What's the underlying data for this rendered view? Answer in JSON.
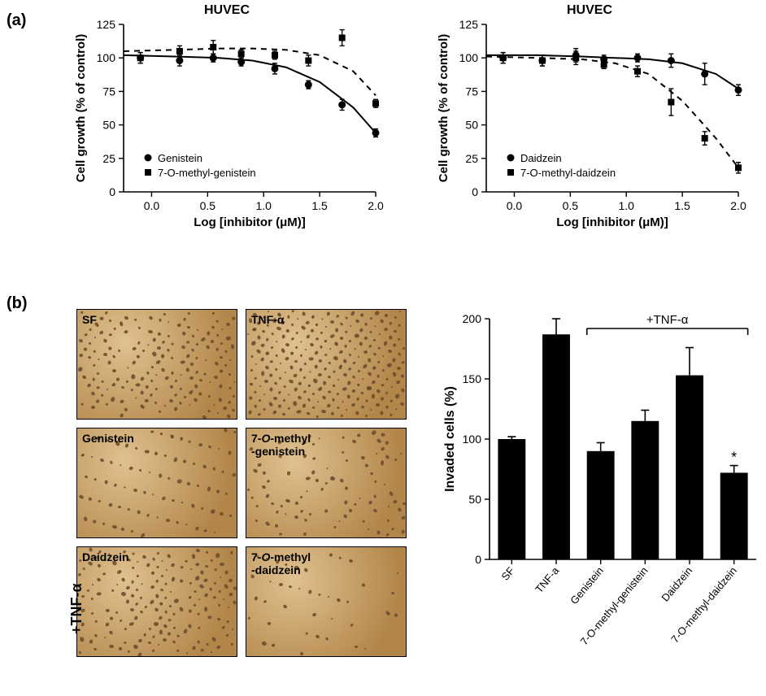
{
  "panel_labels": {
    "a": "(a)",
    "b": "(b)"
  },
  "chart_a1": {
    "type": "line-scatter",
    "title": "HUVEC",
    "xlabel": "Log [inhibitor (μM)]",
    "ylabel": "Cell growth (% of control)",
    "xlim": [
      -0.25,
      2.0
    ],
    "xticks": [
      0.0,
      0.5,
      1.0,
      1.5,
      2.0
    ],
    "ylim": [
      0,
      125
    ],
    "yticks": [
      0,
      25,
      50,
      75,
      100,
      125
    ],
    "series": [
      {
        "name": "Genistein",
        "marker": "circle",
        "dash": "solid",
        "x": [
          -0.1,
          0.25,
          0.55,
          0.8,
          1.1,
          1.4,
          1.7,
          2.0
        ],
        "y": [
          100,
          98,
          100,
          97,
          92,
          80,
          65,
          44
        ],
        "yerr": [
          4,
          4,
          3,
          3,
          4,
          3,
          4,
          3
        ]
      },
      {
        "name": "7-O-methyl-genistein",
        "marker": "square",
        "dash": "dashed",
        "x": [
          -0.1,
          0.25,
          0.55,
          0.8,
          1.1,
          1.4,
          1.7,
          2.0
        ],
        "y": [
          100,
          105,
          108,
          103,
          102,
          98,
          115,
          66
        ],
        "yerr": [
          4,
          4,
          5,
          3,
          3,
          4,
          6,
          3
        ]
      }
    ],
    "curve_solid": {
      "x": [
        -0.25,
        0.2,
        0.6,
        0.9,
        1.2,
        1.5,
        1.8,
        2.0
      ],
      "y": [
        102,
        101,
        100,
        98,
        93,
        82,
        63,
        44
      ]
    },
    "curve_dashed": {
      "x": [
        -0.25,
        0.2,
        0.6,
        0.9,
        1.2,
        1.5,
        1.8,
        2.0
      ],
      "y": [
        105,
        106,
        107,
        107,
        106,
        102,
        90,
        72
      ]
    },
    "legend": [
      "Genistein",
      "7-O-methyl-genistein"
    ],
    "title_fontsize": 16,
    "label_fontsize": 15,
    "tick_fontsize": 14
  },
  "chart_a2": {
    "type": "line-scatter",
    "title": "HUVEC",
    "xlabel": "Log [inhibitor (μM)]",
    "ylabel": "Cell growth (% of control)",
    "xlim": [
      -0.25,
      2.0
    ],
    "xticks": [
      0.0,
      0.5,
      1.0,
      1.5,
      2.0
    ],
    "ylim": [
      0,
      125
    ],
    "yticks": [
      0,
      25,
      50,
      75,
      100,
      125
    ],
    "series": [
      {
        "name": "Daidzein",
        "marker": "circle",
        "dash": "solid",
        "x": [
          -0.1,
          0.25,
          0.55,
          0.8,
          1.1,
          1.4,
          1.7,
          2.0
        ],
        "y": [
          100,
          98,
          102,
          99,
          100,
          98,
          88,
          76
        ],
        "yerr": [
          4,
          4,
          5,
          3,
          3,
          5,
          8,
          4
        ]
      },
      {
        "name": "7-O-methyl-daidzein",
        "marker": "square",
        "dash": "dashed",
        "x": [
          -0.1,
          0.25,
          0.55,
          0.8,
          1.1,
          1.4,
          1.7,
          2.0
        ],
        "y": [
          100,
          98,
          100,
          95,
          90,
          67,
          40,
          18
        ],
        "yerr": [
          4,
          4,
          5,
          3,
          4,
          10,
          5,
          4
        ]
      }
    ],
    "curve_solid": {
      "x": [
        -0.25,
        0.2,
        0.6,
        0.9,
        1.2,
        1.5,
        1.8,
        2.0
      ],
      "y": [
        102,
        102,
        101,
        100,
        99,
        96,
        88,
        77
      ]
    },
    "curve_dashed": {
      "x": [
        -0.25,
        0.2,
        0.6,
        0.9,
        1.2,
        1.5,
        1.8,
        2.0
      ],
      "y": [
        101,
        100,
        99,
        96,
        88,
        68,
        40,
        18
      ]
    },
    "legend": [
      "Daidzein",
      "7-O-methyl-daidzein"
    ],
    "title_fontsize": 16,
    "label_fontsize": 15,
    "tick_fontsize": 14
  },
  "micrographs": {
    "tnf_side_label": "+TNF-α",
    "bg_color": "#c69a5a",
    "panels": [
      {
        "label": "SF",
        "density": "high"
      },
      {
        "label": "TNF-α",
        "density": "very-high"
      },
      {
        "label": "Genistein",
        "density": "medium"
      },
      {
        "label": "7-O-methyl\n-genistein",
        "density": "medium"
      },
      {
        "label": "Daidzein",
        "density": "high"
      },
      {
        "label": "7-O-methyl\n-daidzein",
        "density": "low"
      }
    ]
  },
  "chart_b": {
    "type": "bar",
    "ylabel": "Invaded cells (%)",
    "ylim": [
      0,
      200
    ],
    "yticks": [
      0,
      50,
      100,
      150,
      200
    ],
    "categories": [
      "SF",
      "TNF-a",
      "Genistein",
      "7-O-methyl-genistein",
      "Daidzein",
      "7-O-methyl-daidzein"
    ],
    "values": [
      100,
      187,
      90,
      115,
      153,
      72
    ],
    "yerr": [
      2,
      13,
      7,
      9,
      23,
      6
    ],
    "bar_color": "#000000",
    "bar_width": 0.62,
    "bracket_label": "+TNF-α",
    "bracket_from_idx": 2,
    "bracket_to_idx": 5,
    "sig_marks": [
      {
        "idx": 5,
        "mark": "*"
      }
    ],
    "label_fontsize": 16,
    "tick_fontsize": 14
  }
}
